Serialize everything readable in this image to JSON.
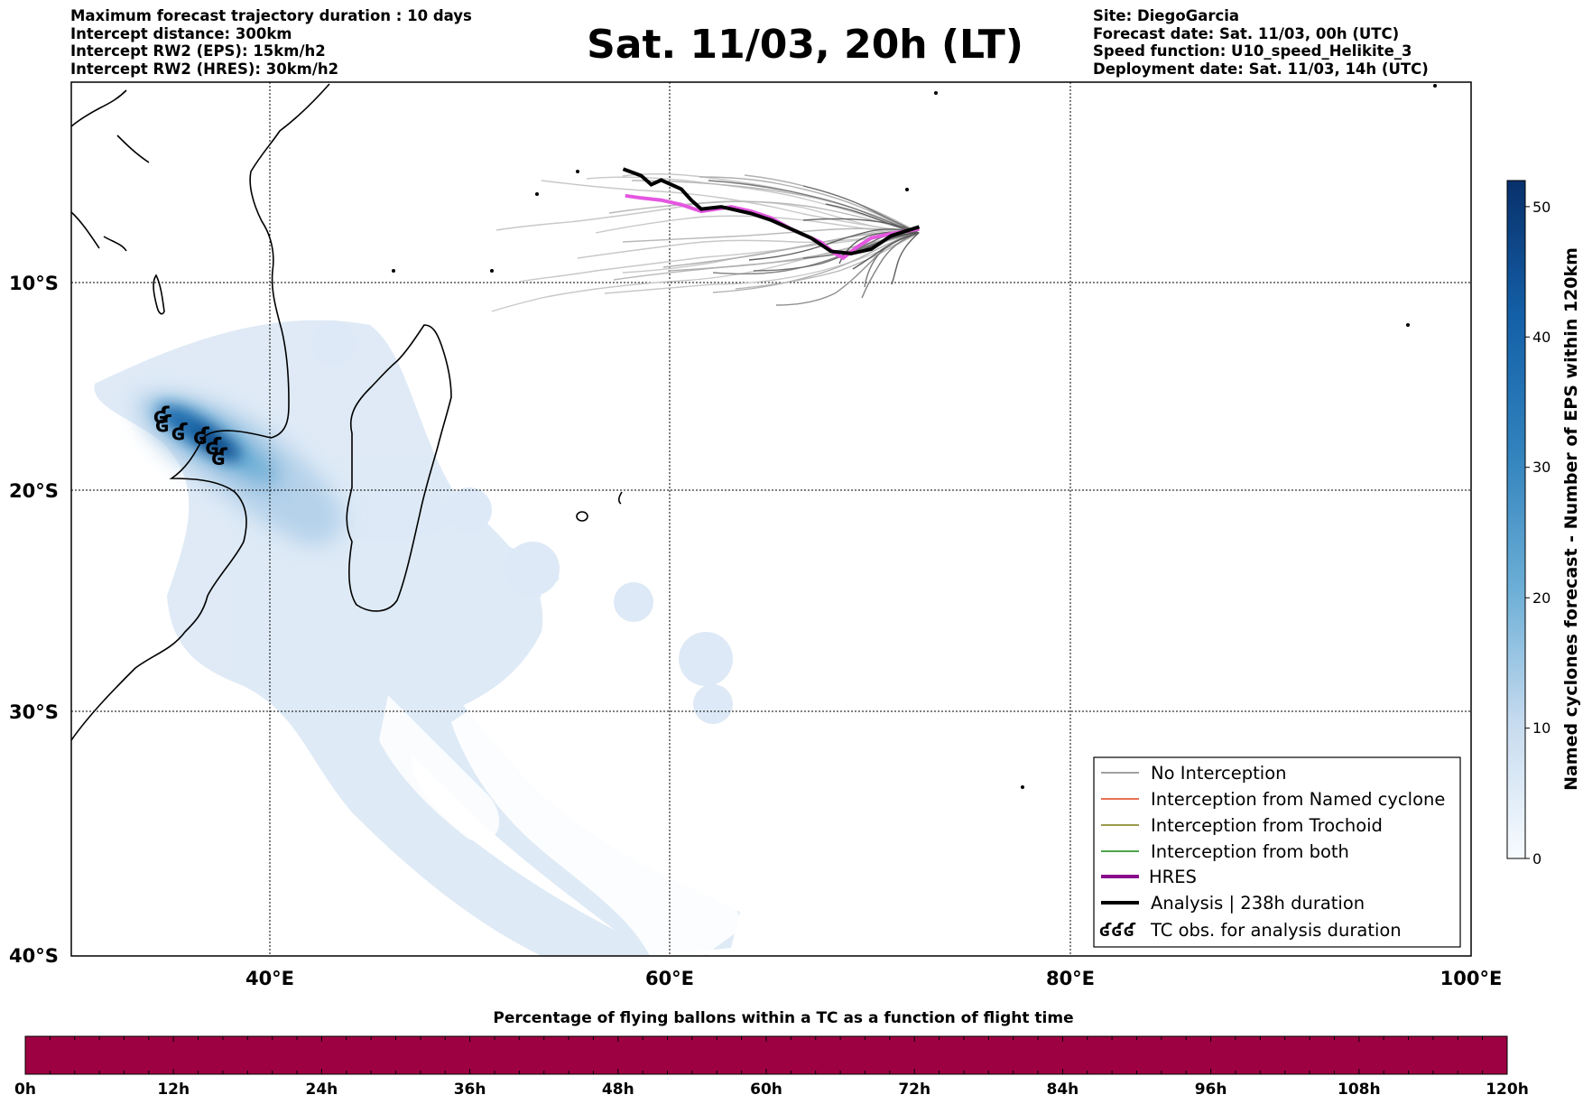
{
  "header": {
    "left_lines": [
      "Maximum forecast trajectory duration : 10 days",
      "Intercept distance: 300km",
      "Intercept RW2 (EPS):  15km/h2",
      "Intercept RW2 (HRES): 30km/h2"
    ],
    "title": "Sat. 11/03, 20h (LT)",
    "right_lines": [
      "Site: DiegoGarcia",
      "Forecast date: Sat. 11/03, 00h (UTC)",
      "Speed function: U10_speed_Helikite_3",
      "Deployment date: Sat. 11/03, 14h (UTC)"
    ]
  },
  "map": {
    "lon_ticks": [
      "40°E",
      "60°E",
      "80°E",
      "100°E"
    ],
    "lat_ticks": [
      "10°S",
      "20°S",
      "30°S",
      "40°S"
    ],
    "extent_lon": [
      30,
      100
    ],
    "extent_lat": [
      -40,
      -1
    ],
    "gridlines": true
  },
  "colorbar": {
    "label": "Named cyclones forecast - Number of EPS within 120km",
    "ticks": [
      "0",
      "10",
      "20",
      "30",
      "40",
      "50"
    ],
    "range": [
      0,
      52
    ],
    "colormap": "Blues"
  },
  "legend": {
    "placement": "lower-right",
    "entries": [
      {
        "label": "No Interception",
        "color": "#808080"
      },
      {
        "label": "Interception from Named cyclone",
        "color": "#e0401a"
      },
      {
        "label": "Interception from Trochoid",
        "color": "#7a7a10"
      },
      {
        "label": "Interception from both",
        "color": "#118811"
      },
      {
        "label": "HRES",
        "color": "#8b0a8b"
      },
      {
        "label": "Analysis | 238h duration",
        "color": "#000000"
      },
      {
        "label": "TC obs. for analysis duration",
        "symbol": "ʛʛʛ"
      }
    ]
  },
  "bottom_bar": {
    "title": "Percentage of flying ballons within a TC as a function of flight time",
    "ticks": [
      "0h",
      "12h",
      "24h",
      "36h",
      "48h",
      "60h",
      "72h",
      "84h",
      "96h",
      "108h",
      "120h"
    ],
    "fill_color": "#9e0142"
  },
  "tracks": {
    "analysis": [
      [
        72.4,
        -7.5
      ],
      [
        71.0,
        -7.9
      ],
      [
        70.0,
        -8.5
      ],
      [
        69.0,
        -8.7
      ],
      [
        68.0,
        -8.6
      ],
      [
        67.0,
        -8.0
      ],
      [
        66.0,
        -7.6
      ],
      [
        65.0,
        -7.2
      ],
      [
        64.0,
        -6.9
      ],
      [
        63.0,
        -6.7
      ],
      [
        62.5,
        -6.6
      ],
      [
        61.5,
        -6.7
      ],
      [
        61.0,
        -6.3
      ],
      [
        60.5,
        -5.8
      ],
      [
        59.5,
        -5.4
      ],
      [
        59.0,
        -5.6
      ],
      [
        58.5,
        -5.2
      ],
      [
        57.6,
        -4.9
      ]
    ],
    "hres": [
      [
        72.4,
        -7.6
      ],
      [
        71.0,
        -7.8
      ],
      [
        70.0,
        -8.0
      ],
      [
        69.3,
        -8.4
      ],
      [
        68.6,
        -8.9
      ],
      [
        68.2,
        -8.7
      ],
      [
        67.5,
        -8.2
      ],
      [
        66.0,
        -7.6
      ],
      [
        65.0,
        -7.1
      ],
      [
        64.0,
        -6.8
      ],
      [
        63.0,
        -6.6
      ],
      [
        61.5,
        -6.8
      ],
      [
        60.5,
        -6.5
      ],
      [
        59.5,
        -6.3
      ],
      [
        58.5,
        -6.2
      ],
      [
        57.7,
        -6.1
      ]
    ]
  },
  "tc_obs": [
    [
      34.5,
      -16.4
    ],
    [
      34.6,
      -16.8
    ],
    [
      35.4,
      -17.2
    ],
    [
      36.5,
      -17.4
    ],
    [
      37.1,
      -17.9
    ],
    [
      37.4,
      -18.4
    ]
  ]
}
